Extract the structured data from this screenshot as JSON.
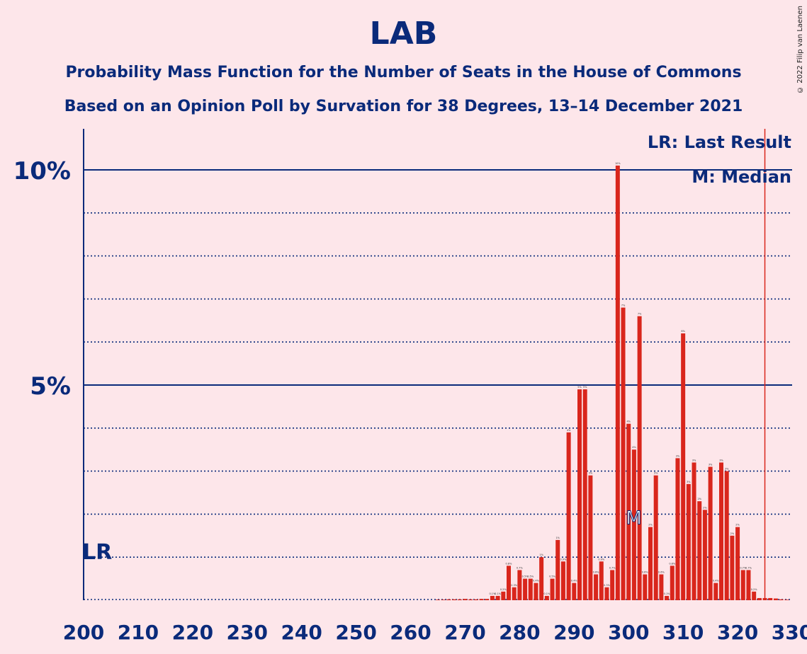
{
  "title": "LAB",
  "subtitle1": "Probability Mass Function for the Number of Seats in the House of Commons",
  "subtitle2": "Based on an Opinion Poll by Survation for 38 Degrees, 13–14 December 2021",
  "copyright": "© 2022 Filip van Laenen",
  "legend": {
    "lr": "LR: Last Result",
    "m": "M: Median"
  },
  "lr_marker": "LR",
  "median_marker": "M",
  "colors": {
    "bar": "#D9261C",
    "text": "#0A2A7A",
    "background": "#FDE6EA",
    "lr_line": "#D9261C"
  },
  "chart_data": {
    "type": "bar",
    "xlim": [
      200,
      330
    ],
    "ylim": [
      0,
      11
    ],
    "x_ticks": [
      "200",
      "210",
      "220",
      "230",
      "240",
      "250",
      "260",
      "270",
      "280",
      "290",
      "300",
      "310",
      "320",
      "330"
    ],
    "y_ticks": [
      {
        "value": 5,
        "label": "5%"
      },
      {
        "value": 10,
        "label": "10%"
      }
    ],
    "last_result": 325,
    "median": 302,
    "seats": [
      265,
      266,
      267,
      268,
      269,
      270,
      271,
      272,
      273,
      274,
      275,
      276,
      277,
      278,
      279,
      280,
      281,
      282,
      283,
      284,
      285,
      286,
      287,
      288,
      289,
      290,
      291,
      292,
      293,
      294,
      295,
      296,
      297,
      298,
      299,
      300,
      301,
      302,
      303,
      304,
      305,
      306,
      307,
      308,
      309,
      310,
      311,
      312,
      313,
      314,
      315,
      316,
      317,
      318,
      319,
      320,
      321,
      322,
      323,
      324,
      325,
      326,
      327,
      328,
      329
    ],
    "values": [
      0.01,
      0.01,
      0.02,
      0.02,
      0.02,
      0.03,
      0.02,
      0.02,
      0.03,
      0.03,
      0.1,
      0.1,
      0.2,
      0.8,
      0.3,
      0.7,
      0.5,
      0.5,
      0.4,
      1.0,
      0.1,
      0.5,
      1.4,
      0.9,
      3.9,
      0.4,
      4.9,
      4.9,
      2.9,
      0.6,
      0.9,
      0.3,
      0.7,
      10.1,
      6.8,
      4.1,
      3.5,
      6.6,
      0.6,
      1.7,
      2.9,
      0.6,
      0.1,
      0.8,
      3.3,
      6.2,
      2.7,
      3.2,
      2.3,
      2.1,
      3.1,
      0.4,
      3.2,
      3.0,
      1.5,
      1.7,
      0.7,
      0.7,
      0.2,
      0.05,
      0.05,
      0.05,
      0.04,
      0.02,
      0.01
    ]
  }
}
